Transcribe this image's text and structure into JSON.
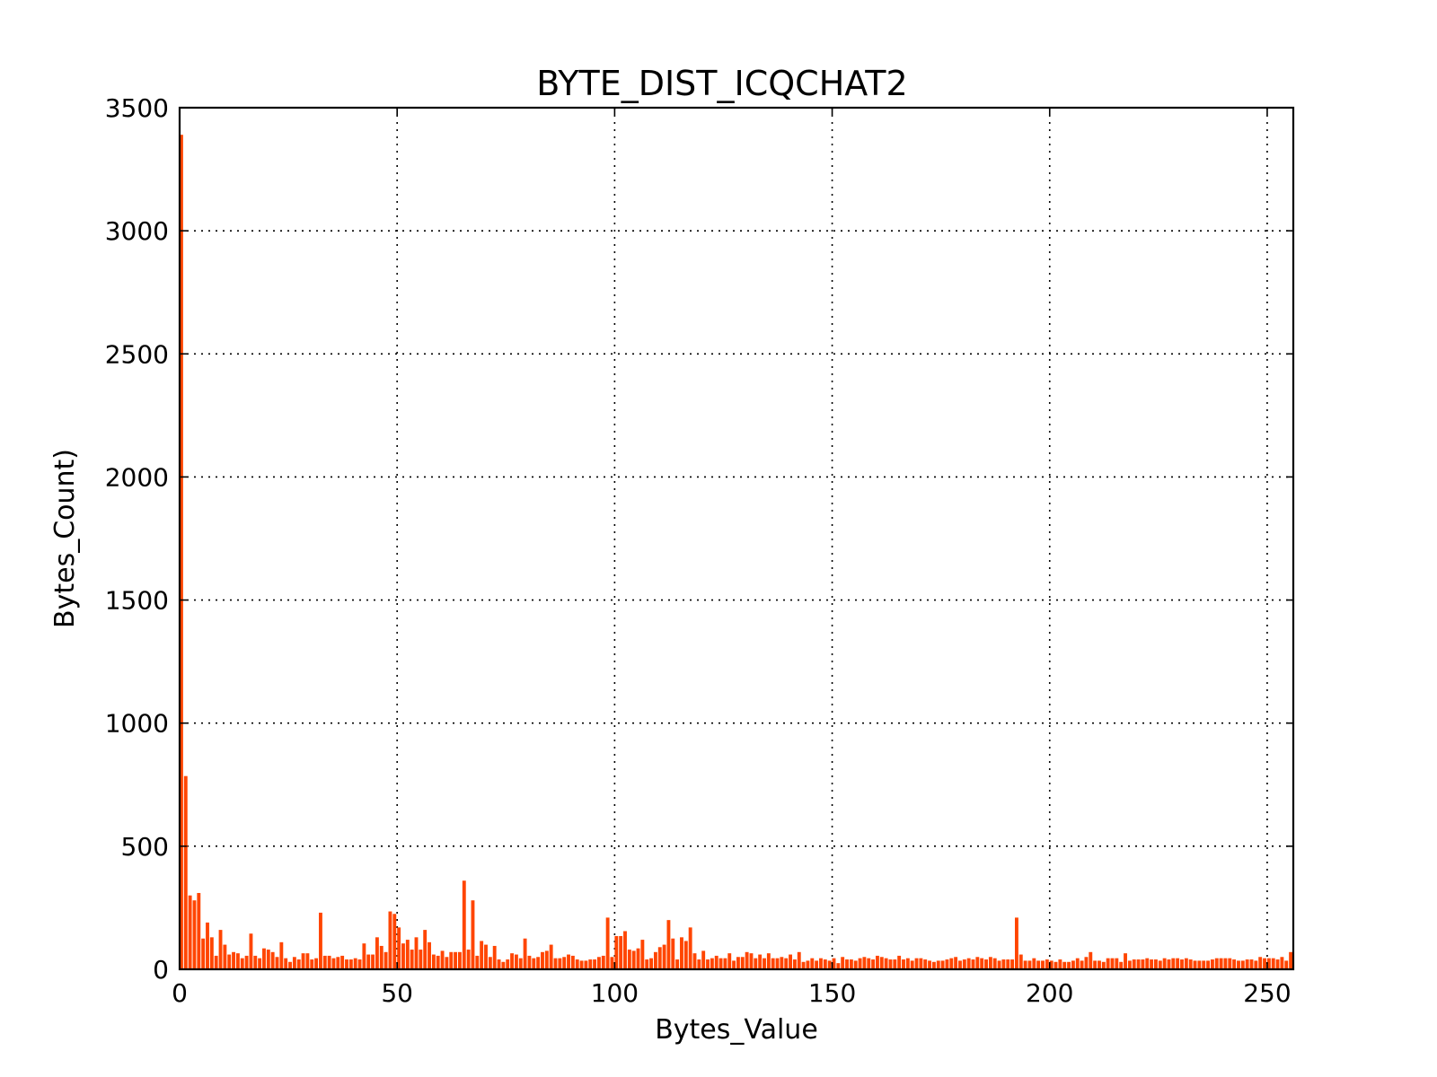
{
  "chart_data": {
    "type": "bar",
    "title": "BYTE_DIST_ICQCHAT2",
    "xlabel": "Bytes_Value",
    "ylabel": "Bytes_Count)",
    "xlim": [
      0,
      256
    ],
    "ylim": [
      0,
      3500
    ],
    "xticks": [
      "0",
      "50",
      "100",
      "150",
      "200",
      "250"
    ],
    "yticks": [
      "0",
      "500",
      "1000",
      "1500",
      "2000",
      "2500",
      "3000",
      "3500"
    ],
    "grid": true,
    "legend": "none",
    "bar_color": "#ff4500",
    "x_start": 0,
    "values": [
      3390,
      785,
      300,
      280,
      310,
      125,
      190,
      130,
      55,
      160,
      100,
      60,
      70,
      65,
      45,
      55,
      145,
      55,
      45,
      85,
      80,
      70,
      50,
      110,
      45,
      30,
      50,
      40,
      65,
      65,
      40,
      45,
      230,
      55,
      55,
      45,
      50,
      55,
      40,
      40,
      45,
      40,
      105,
      60,
      60,
      130,
      95,
      70,
      235,
      225,
      170,
      105,
      120,
      80,
      130,
      80,
      160,
      110,
      60,
      55,
      75,
      50,
      70,
      70,
      70,
      360,
      80,
      280,
      55,
      115,
      100,
      50,
      95,
      40,
      30,
      40,
      65,
      60,
      45,
      125,
      55,
      45,
      50,
      70,
      75,
      100,
      45,
      45,
      50,
      60,
      55,
      40,
      35,
      35,
      40,
      40,
      50,
      55,
      210,
      50,
      135,
      135,
      155,
      80,
      75,
      85,
      120,
      40,
      45,
      70,
      90,
      100,
      200,
      125,
      40,
      130,
      115,
      170,
      65,
      40,
      75,
      40,
      45,
      55,
      45,
      45,
      65,
      35,
      50,
      50,
      70,
      65,
      45,
      60,
      45,
      65,
      45,
      45,
      50,
      45,
      60,
      40,
      70,
      30,
      35,
      45,
      35,
      45,
      40,
      35,
      45,
      25,
      50,
      40,
      40,
      35,
      45,
      50,
      45,
      40,
      55,
      50,
      45,
      40,
      40,
      55,
      40,
      45,
      35,
      45,
      45,
      40,
      35,
      30,
      35,
      35,
      40,
      45,
      50,
      35,
      40,
      45,
      40,
      50,
      45,
      40,
      50,
      45,
      35,
      40,
      40,
      40,
      210,
      60,
      35,
      35,
      45,
      35,
      35,
      40,
      35,
      30,
      40,
      30,
      30,
      35,
      45,
      35,
      50,
      70,
      35,
      35,
      30,
      45,
      45,
      45,
      30,
      65,
      35,
      40,
      40,
      40,
      45,
      40,
      40,
      35,
      45,
      40,
      45,
      45,
      40,
      45,
      40,
      35,
      35,
      35,
      35,
      40,
      45,
      45,
      45,
      45,
      40,
      35,
      35,
      40,
      40,
      35,
      50,
      45,
      45,
      45,
      40,
      50,
      35,
      70
    ]
  }
}
